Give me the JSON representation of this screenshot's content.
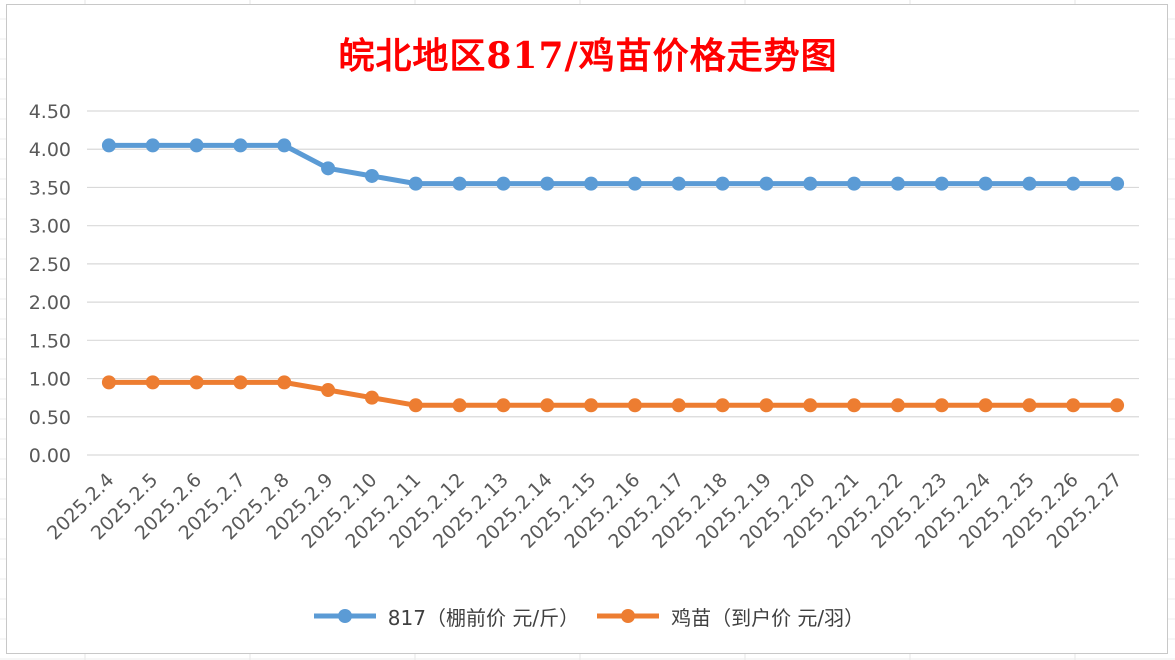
{
  "chart_data": {
    "type": "line",
    "title": "皖北地区817/鸡苗价格走势图",
    "categories": [
      "2025.2.4",
      "2025.2.5",
      "2025.2.6",
      "2025.2.7",
      "2025.2.8",
      "2025.2.9",
      "2025.2.10",
      "2025.2.11",
      "2025.2.12",
      "2025.2.13",
      "2025.2.14",
      "2025.2.15",
      "2025.2.16",
      "2025.2.17",
      "2025.2.18",
      "2025.2.19",
      "2025.2.20",
      "2025.2.21",
      "2025.2.22",
      "2025.2.23",
      "2025.2.24",
      "2025.2.25",
      "2025.2.26",
      "2025.2.27"
    ],
    "yticks": [
      "0.00",
      "0.50",
      "1.00",
      "1.50",
      "2.00",
      "2.50",
      "3.00",
      "3.50",
      "4.00",
      "4.50"
    ],
    "ylim": [
      0,
      4.5
    ],
    "grid": true,
    "legend_position": "bottom",
    "series": [
      {
        "name": "817（棚前价 元/斤）",
        "color": "#5b9bd5",
        "values": [
          4.05,
          4.05,
          4.05,
          4.05,
          4.05,
          3.75,
          3.65,
          3.55,
          3.55,
          3.55,
          3.55,
          3.55,
          3.55,
          3.55,
          3.55,
          3.55,
          3.55,
          3.55,
          3.55,
          3.55,
          3.55,
          3.55,
          3.55,
          3.55
        ]
      },
      {
        "name": "鸡苗（到户价 元/羽）",
        "color": "#ed7d31",
        "values": [
          0.95,
          0.95,
          0.95,
          0.95,
          0.95,
          0.85,
          0.75,
          0.65,
          0.65,
          0.65,
          0.65,
          0.65,
          0.65,
          0.65,
          0.65,
          0.65,
          0.65,
          0.65,
          0.65,
          0.65,
          0.65,
          0.65,
          0.65,
          0.65
        ]
      }
    ]
  }
}
